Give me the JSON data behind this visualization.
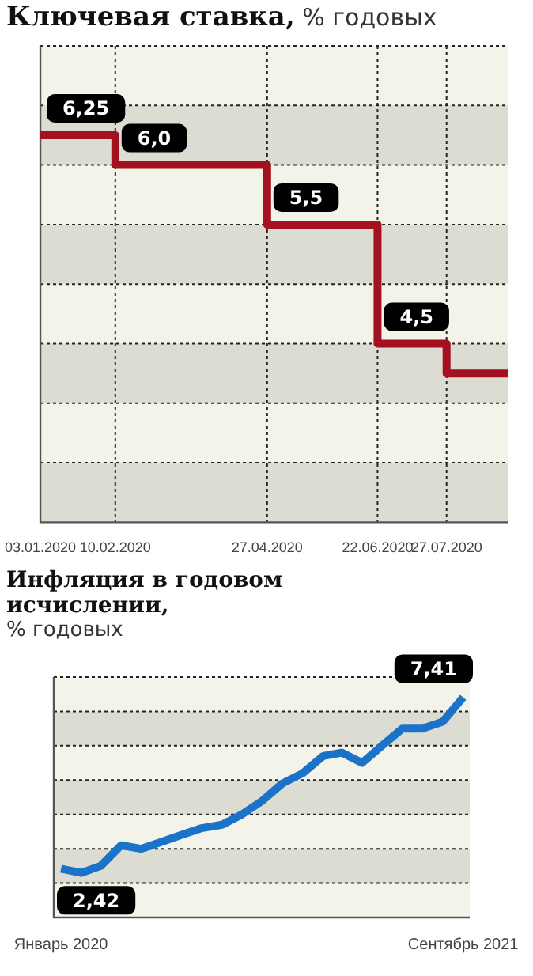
{
  "chart_data": [
    {
      "type": "step",
      "title": "Ключевая ставка,",
      "subtitle": "% годовых",
      "x": [
        "2020-01-03",
        "2020-02-10",
        "2020-04-27",
        "2020-06-22",
        "2020-07-27",
        "2020-08-27"
      ],
      "values": [
        6.25,
        6.0,
        5.5,
        4.5,
        4.25,
        4.25
      ],
      "value_labels": [
        "6,25",
        "6,0",
        "5,5",
        "4,5",
        null,
        null
      ],
      "color": "#a3101f",
      "marker": "none",
      "xlim": [
        "2020-01-03",
        "2020-08-27"
      ],
      "xticks": [
        {
          "value": "2020-01-03",
          "label": "03.01.2020"
        },
        {
          "value": "2020-02-10",
          "label": "10.02.2020"
        },
        {
          "value": "2020-04-27",
          "label": "27.04.2020"
        },
        {
          "value": "2020-06-22",
          "label": "22.06.2020"
        },
        {
          "value": "2020-07-27",
          "label": "27.07.2020"
        }
      ],
      "ylim": [
        3,
        7
      ],
      "yticks": [
        {
          "value": 3,
          "label": null
        },
        {
          "value": 3.5,
          "label": null
        },
        {
          "value": 4,
          "label": null
        },
        {
          "value": 4.5,
          "label": null
        },
        {
          "value": 5,
          "label": null
        },
        {
          "value": 5.5,
          "label": null
        },
        {
          "value": 6,
          "label": null
        },
        {
          "value": 6.5,
          "label": null
        },
        {
          "value": 7,
          "label": null
        }
      ],
      "grid": true,
      "tick_labels": "x"
    },
    {
      "type": "line",
      "title": "Инфляция в годовом исчислении,",
      "subtitle": "% годовых",
      "x": [
        "2020-01",
        "2020-02",
        "2020-03",
        "2020-04",
        "2020-05",
        "2020-06",
        "2020-07",
        "2020-08",
        "2020-09",
        "2020-10",
        "2020-11",
        "2020-12",
        "2021-01",
        "2021-02",
        "2021-03",
        "2021-04",
        "2021-05",
        "2021-06",
        "2021-07",
        "2021-08",
        "2021-09"
      ],
      "values": [
        2.42,
        2.3,
        2.5,
        3.1,
        3.0,
        3.2,
        3.4,
        3.6,
        3.7,
        4.0,
        4.4,
        4.9,
        5.2,
        5.7,
        5.8,
        5.5,
        6.0,
        6.5,
        6.5,
        6.7,
        7.41
      ],
      "value_labels": [
        "2,42",
        null,
        null,
        null,
        null,
        null,
        null,
        null,
        null,
        null,
        null,
        null,
        null,
        null,
        null,
        null,
        null,
        null,
        null,
        null,
        "7,41"
      ],
      "color": "#1a73c9",
      "marker": "none",
      "xlim": [
        "2019-12-21",
        "2021-09-11"
      ],
      "xticks": [
        {
          "value": "2020-01",
          "label": "Январь 2020"
        },
        {
          "value": "2021-09",
          "label": "Сентябрь 2021"
        }
      ],
      "ylim": [
        1,
        8
      ],
      "yticks": [
        {
          "value": 1,
          "label": null
        },
        {
          "value": 2,
          "label": null
        },
        {
          "value": 3,
          "label": null
        },
        {
          "value": 4,
          "label": null
        },
        {
          "value": 5,
          "label": null
        },
        {
          "value": 6,
          "label": null
        },
        {
          "value": 7,
          "label": null
        },
        {
          "value": 8,
          "label": null
        }
      ],
      "grid": "y",
      "tick_labels": "x"
    }
  ]
}
